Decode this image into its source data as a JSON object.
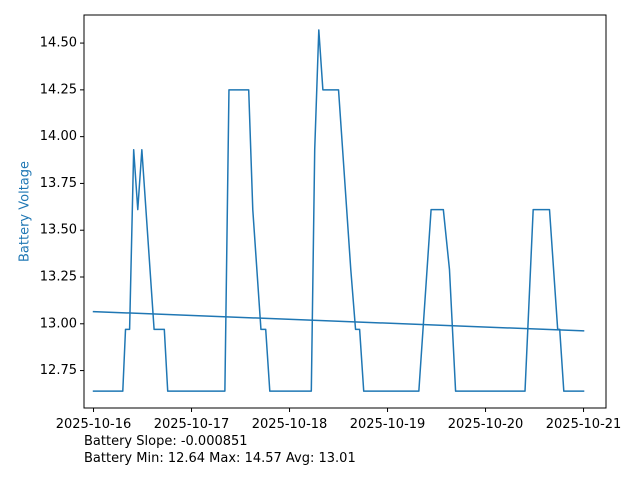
{
  "chart_data": {
    "type": "line",
    "title": "",
    "xlabel": "",
    "ylabel": "Battery Voltage",
    "xlim": [
      "2025-10-15T21:40:00",
      "2025-10-21T05:30:00"
    ],
    "ylim": [
      12.55,
      14.65
    ],
    "x_ticks": [
      "2025-10-16",
      "2025-10-17",
      "2025-10-18",
      "2025-10-19",
      "2025-10-20",
      "2025-10-21"
    ],
    "y_ticks": [
      "12.75",
      "13.00",
      "13.25",
      "13.50",
      "13.75",
      "14.00",
      "14.25",
      "14.50"
    ],
    "grid": false,
    "legend": "none",
    "series": [
      {
        "name": "",
        "color": "#1f77b4",
        "points": [
          [
            "2025-10-16T00:00",
            12.64
          ],
          [
            "2025-10-16T07:10",
            12.64
          ],
          [
            "2025-10-16T07:50",
            12.97
          ],
          [
            "2025-10-16T08:50",
            12.97
          ],
          [
            "2025-10-16T09:50",
            13.93
          ],
          [
            "2025-10-16T10:50",
            13.61
          ],
          [
            "2025-10-16T11:50",
            13.93
          ],
          [
            "2025-10-16T14:50",
            12.97
          ],
          [
            "2025-10-16T17:20",
            12.97
          ],
          [
            "2025-10-16T18:10",
            12.64
          ],
          [
            "2025-10-17T08:10",
            12.64
          ],
          [
            "2025-10-17T09:10",
            14.25
          ],
          [
            "2025-10-17T14:00",
            14.25
          ],
          [
            "2025-10-17T15:00",
            13.61
          ],
          [
            "2025-10-17T17:00",
            12.97
          ],
          [
            "2025-10-17T18:10",
            12.97
          ],
          [
            "2025-10-17T19:10",
            12.64
          ],
          [
            "2025-10-18T05:20",
            12.64
          ],
          [
            "2025-10-18T06:10",
            13.93
          ],
          [
            "2025-10-18T07:10",
            14.57
          ],
          [
            "2025-10-18T08:10",
            14.25
          ],
          [
            "2025-10-18T12:00",
            14.25
          ],
          [
            "2025-10-18T13:00",
            13.93
          ],
          [
            "2025-10-18T15:00",
            13.29
          ],
          [
            "2025-10-18T16:10",
            12.97
          ],
          [
            "2025-10-18T17:10",
            12.97
          ],
          [
            "2025-10-18T18:10",
            12.64
          ],
          [
            "2025-10-19T07:40",
            12.64
          ],
          [
            "2025-10-19T10:40",
            13.61
          ],
          [
            "2025-10-19T13:40",
            13.61
          ],
          [
            "2025-10-19T15:10",
            13.29
          ],
          [
            "2025-10-19T16:40",
            12.64
          ],
          [
            "2025-10-20T09:40",
            12.64
          ],
          [
            "2025-10-20T11:40",
            13.61
          ],
          [
            "2025-10-20T15:40",
            13.61
          ],
          [
            "2025-10-20T17:40",
            12.97
          ],
          [
            "2025-10-20T18:10",
            12.97
          ],
          [
            "2025-10-20T19:10",
            12.64
          ],
          [
            "2025-10-21T00:00",
            12.64
          ]
        ]
      },
      {
        "name": "",
        "color": "#1f77b4",
        "points": [
          [
            "2025-10-16T00:00",
            13.065
          ],
          [
            "2025-10-21T00:00",
            12.962
          ]
        ]
      }
    ],
    "annotations": [
      "Battery Slope: -0.000851",
      "Battery Min: 12.64 Max: 14.57 Avg: 13.01"
    ]
  }
}
